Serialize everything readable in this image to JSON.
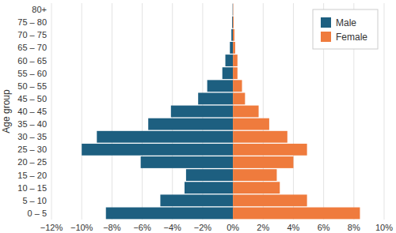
{
  "chart_data": {
    "type": "bar",
    "orientation": "horizontal",
    "y_label": "Age group",
    "categories": [
      "0 – 5",
      "5 – 10",
      "10 – 15",
      "15 – 20",
      "20 – 25",
      "25 – 30",
      "30 – 35",
      "35 – 40",
      "40 – 45",
      "45 – 50",
      "50 – 55",
      "55 – 60",
      "60 – 65",
      "65 – 70",
      "70 – 75",
      "75 – 80",
      "80+"
    ],
    "series": [
      {
        "name": "Male",
        "color": "#1d5f80",
        "values": [
          -8.4,
          -4.8,
          -3.2,
          -3.1,
          -6.1,
          -10.0,
          -9.0,
          -5.6,
          -4.1,
          -2.3,
          -1.7,
          -0.7,
          -0.5,
          -0.2,
          -0.1,
          -0.05,
          -0.02
        ]
      },
      {
        "name": "Female",
        "color": "#ef7b3d",
        "values": [
          8.4,
          4.9,
          3.1,
          2.9,
          4.0,
          4.9,
          3.6,
          2.4,
          1.7,
          0.8,
          0.6,
          0.3,
          0.3,
          0.15,
          0.1,
          0.05,
          0.02
        ]
      }
    ],
    "xlim": [
      -12,
      10
    ],
    "xticks": [
      {
        "value": -12,
        "label": "−12%"
      },
      {
        "value": -10,
        "label": "−10%"
      },
      {
        "value": -8,
        "label": "−8%"
      },
      {
        "value": -6,
        "label": "−6%"
      },
      {
        "value": -4,
        "label": "−4%"
      },
      {
        "value": -2,
        "label": "−2%"
      },
      {
        "value": 0,
        "label": "0%"
      },
      {
        "value": 2,
        "label": "2%"
      },
      {
        "value": 4,
        "label": "4%"
      },
      {
        "value": 6,
        "label": "6%"
      },
      {
        "value": 8,
        "label": "8%"
      },
      {
        "value": 10,
        "label": "10%"
      }
    ],
    "grid": true,
    "legend": "top-right"
  }
}
